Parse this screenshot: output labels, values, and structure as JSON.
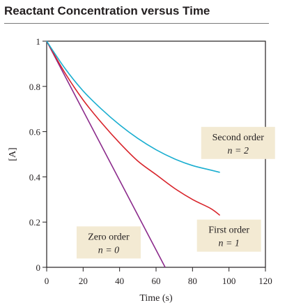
{
  "chart_data": {
    "type": "line",
    "title": "Reactant Concentration versus Time",
    "xlabel": "Time (s)",
    "ylabel": "[A]",
    "xlim": [
      0,
      120
    ],
    "ylim": [
      0,
      1
    ],
    "xticks": [
      0,
      20,
      40,
      60,
      80,
      100,
      120
    ],
    "yticks": [
      0,
      0.2,
      0.4,
      0.6,
      0.8,
      1
    ],
    "ytick_labels": [
      "0",
      "0.2",
      "0.4",
      "0.6",
      "0.8",
      "1"
    ],
    "grid": false,
    "series": [
      {
        "name": "Zero order",
        "color": "#8b2a8b",
        "x": [
          0,
          65
        ],
        "y": [
          1,
          0
        ]
      },
      {
        "name": "First order",
        "color": "#d8232a",
        "x": [
          0,
          10,
          20,
          30,
          40,
          50,
          60,
          70,
          80,
          90,
          95
        ],
        "y": [
          1,
          0.86,
          0.74,
          0.64,
          0.55,
          0.47,
          0.41,
          0.35,
          0.3,
          0.26,
          0.23
        ]
      },
      {
        "name": "Second order",
        "color": "#1aaed0",
        "x": [
          0,
          10,
          20,
          30,
          40,
          50,
          60,
          70,
          80,
          90,
          95
        ],
        "y": [
          1,
          0.88,
          0.78,
          0.7,
          0.63,
          0.57,
          0.52,
          0.48,
          0.45,
          0.43,
          0.42
        ]
      }
    ],
    "annotations": [
      {
        "line1": "Zero order",
        "line2": "n = 0"
      },
      {
        "line1": "First order",
        "line2": "n = 1"
      },
      {
        "line1": "Second order",
        "line2": "n = 2"
      }
    ],
    "annotation_bg": "#f3ead3"
  }
}
